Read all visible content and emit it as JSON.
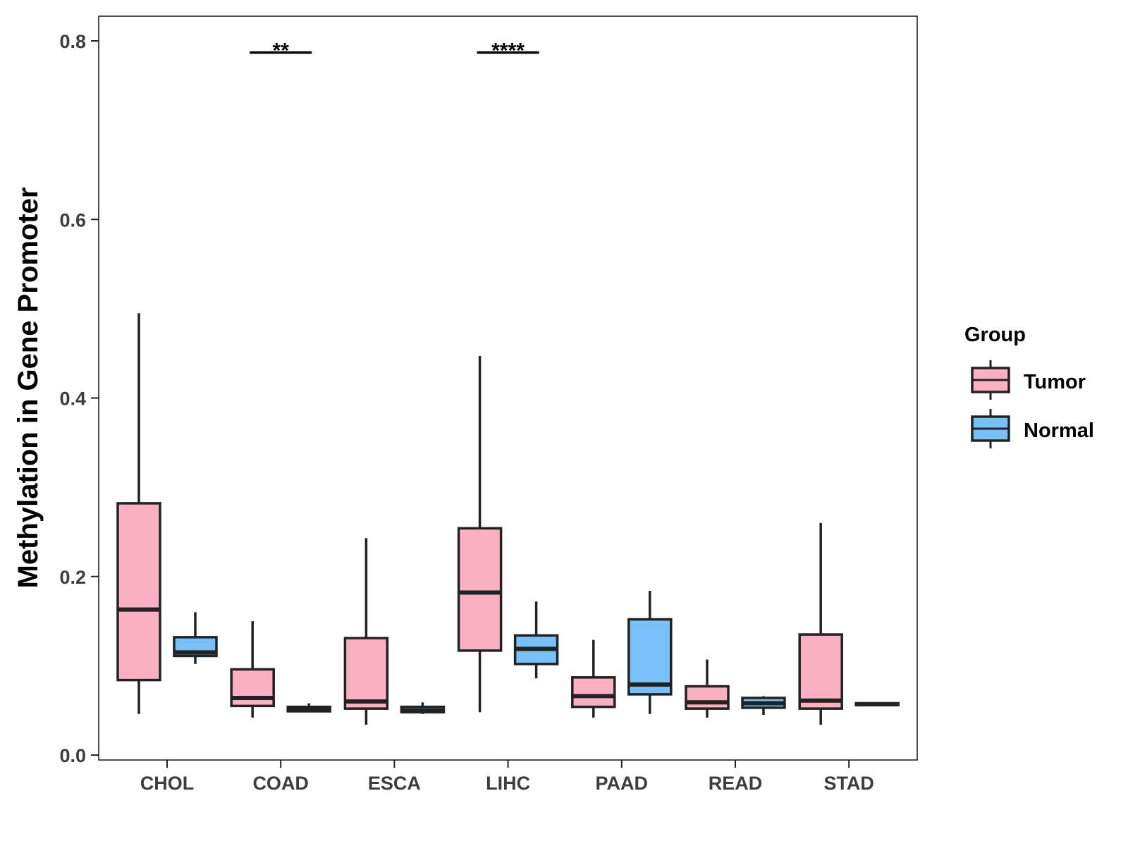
{
  "chart_data": {
    "type": "boxplot",
    "title": "",
    "xlabel": "",
    "ylabel": "Methylation in Gene Promoter",
    "ylim": [
      -0.004,
      0.828
    ],
    "y_ticks": [
      0.0,
      0.2,
      0.4,
      0.6,
      0.8
    ],
    "y_tick_labels": [
      "0.0",
      "0.2",
      "0.4",
      "0.6",
      "0.8"
    ],
    "categories": [
      "CHOL",
      "COAD",
      "ESCA",
      "LIHC",
      "PAAD",
      "READ",
      "STAD"
    ],
    "grid": false,
    "legend": {
      "title": "Group",
      "position": "right",
      "entries": [
        {
          "name": "Tumor",
          "color": "#FAAFC2"
        },
        {
          "name": "Normal",
          "color": "#78C0F8"
        }
      ]
    },
    "series": [
      {
        "name": "Tumor",
        "color": "#FAAFC2",
        "boxes": [
          {
            "min": 0.046,
            "q1": 0.084,
            "median": 0.163,
            "q3": 0.282,
            "max": 0.495
          },
          {
            "min": 0.042,
            "q1": 0.055,
            "median": 0.064,
            "q3": 0.096,
            "max": 0.15
          },
          {
            "min": 0.034,
            "q1": 0.052,
            "median": 0.06,
            "q3": 0.131,
            "max": 0.243
          },
          {
            "min": 0.048,
            "q1": 0.117,
            "median": 0.182,
            "q3": 0.254,
            "max": 0.447
          },
          {
            "min": 0.042,
            "q1": 0.054,
            "median": 0.066,
            "q3": 0.087,
            "max": 0.129
          },
          {
            "min": 0.042,
            "q1": 0.052,
            "median": 0.059,
            "q3": 0.077,
            "max": 0.107
          },
          {
            "min": 0.034,
            "q1": 0.052,
            "median": 0.061,
            "q3": 0.135,
            "max": 0.26
          }
        ]
      },
      {
        "name": "Normal",
        "color": "#78C0F8",
        "boxes": [
          {
            "min": 0.102,
            "q1": 0.111,
            "median": 0.115,
            "q3": 0.132,
            "max": 0.16
          },
          {
            "min": 0.048,
            "q1": 0.049,
            "median": 0.051,
            "q3": 0.054,
            "max": 0.058
          },
          {
            "min": 0.046,
            "q1": 0.048,
            "median": 0.05,
            "q3": 0.054,
            "max": 0.059
          },
          {
            "min": 0.086,
            "q1": 0.102,
            "median": 0.119,
            "q3": 0.134,
            "max": 0.172
          },
          {
            "min": 0.046,
            "q1": 0.068,
            "median": 0.079,
            "q3": 0.152,
            "max": 0.184
          },
          {
            "min": 0.045,
            "q1": 0.053,
            "median": 0.058,
            "q3": 0.064,
            "max": 0.066
          },
          {
            "min": 0.055,
            "q1": 0.056,
            "median": 0.057,
            "q3": 0.058,
            "max": 0.059
          }
        ]
      }
    ],
    "significance": [
      {
        "category": "COAD",
        "label": "**",
        "y": 0.787
      },
      {
        "category": "LIHC",
        "label": "****",
        "y": 0.787
      }
    ]
  }
}
